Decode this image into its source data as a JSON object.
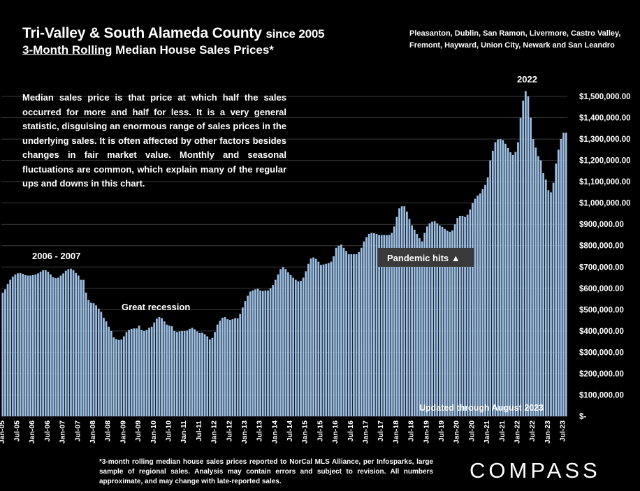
{
  "header": {
    "title_main": "Tri-Valley & South Alameda County",
    "title_suffix": "since 2005",
    "subtitle_underlined": "3-Month Rolling",
    "subtitle_rest": "Median House Sales Prices*",
    "region_line1": "Pleasanton, Dublin, San Ramon, Livermore, Castro Valley,",
    "region_line2": "Fremont, Hayward, Union City, Newark and San Leandro"
  },
  "description": "Median sales price is that price at which half the sales occurred for more and half for less. It is a very general statistic, disguising an enormous range of sales prices in the underlying sales. It is often affected by other factors besides changes in fair market value. Monthly and seasonal fluctuations are common, which explain many of the regular ups and downs in this chart.",
  "footnote": "*3-month rolling median house sales prices reported to NorCal MLS Alliance, per Infosparks, large sample of regional sales. Analysis may contain errors and subject to revision. All numbers approximate, and may change with late-reported sales.",
  "logo": "COMPASS",
  "colors": {
    "bar": "#9dbfe3",
    "grid": "#3a3a3a",
    "background": "#000000",
    "callout_bg": "#3a3a3a"
  },
  "chart_data": {
    "type": "bar",
    "y_axis_side": "right",
    "ylim": [
      0,
      1600000
    ],
    "yticks": [
      "$-",
      "$100,000.00",
      "$200,000.00",
      "$300,000.00",
      "$400,000.00",
      "$500,000.00",
      "$600,000.00",
      "$700,000.00",
      "$800,000.00",
      "$900,000.00",
      "$1,000,000.00",
      "$1,100,000.00",
      "$1,200,000.00",
      "$1,300,000.00",
      "$1,400,000.00",
      "$1,500,000.00"
    ],
    "xtick_labels": [
      "Jan-05",
      "Jul-05",
      "Jan-06",
      "Jul-06",
      "Jan-07",
      "Jul-07",
      "Jan-08",
      "Jul-08",
      "Jan-09",
      "Jul-09",
      "Jan-10",
      "Jul-10",
      "Jan-11",
      "Jul-11",
      "Jan-12",
      "Jul-12",
      "Jan-13",
      "Jul-13",
      "Jan-14",
      "Jul-14",
      "Jan-15",
      "Jul-15",
      "Jan-16",
      "Jul-16",
      "Jan-17",
      "Jul-17",
      "Jan-18",
      "Jul-18",
      "Jan-19",
      "Jul-19",
      "Jan-20",
      "Jul-20",
      "Jan-21",
      "Jul-21",
      "Jan-22",
      "Jul-22",
      "Jan-23",
      "Jul-23"
    ],
    "start_month": "Jan-05",
    "values": [
      580000,
      595000,
      620000,
      640000,
      655000,
      665000,
      670000,
      672000,
      668000,
      662000,
      660000,
      660000,
      662000,
      665000,
      670000,
      678000,
      685000,
      685000,
      678000,
      665000,
      652000,
      648000,
      650000,
      660000,
      670000,
      682000,
      690000,
      692000,
      685000,
      672000,
      660000,
      640000,
      640000,
      580000,
      545000,
      532000,
      530000,
      520000,
      505000,
      490000,
      462000,
      445000,
      420000,
      400000,
      370000,
      362000,
      358000,
      360000,
      375000,
      395000,
      405000,
      410000,
      412000,
      412000,
      425000,
      405000,
      400000,
      405000,
      415000,
      420000,
      440000,
      458000,
      465000,
      460000,
      445000,
      430000,
      425000,
      422000,
      400000,
      395000,
      398000,
      400000,
      400000,
      402000,
      410000,
      415000,
      408000,
      398000,
      390000,
      392000,
      385000,
      375000,
      360000,
      368000,
      395000,
      430000,
      448000,
      462000,
      465000,
      455000,
      452000,
      455000,
      460000,
      460000,
      480000,
      510000,
      540000,
      565000,
      585000,
      590000,
      595000,
      598000,
      590000,
      588000,
      590000,
      590000,
      600000,
      615000,
      640000,
      665000,
      690000,
      700000,
      690000,
      675000,
      662000,
      650000,
      640000,
      633000,
      635000,
      650000,
      680000,
      715000,
      740000,
      745000,
      738000,
      725000,
      710000,
      712000,
      715000,
      718000,
      725000,
      750000,
      790000,
      800000,
      805000,
      790000,
      775000,
      760000,
      760000,
      760000,
      760000,
      770000,
      790000,
      820000,
      840000,
      855000,
      860000,
      858000,
      855000,
      850000,
      850000,
      850000,
      850000,
      850000,
      860000,
      890000,
      935000,
      975000,
      985000,
      985000,
      960000,
      925000,
      895000,
      875000,
      855000,
      835000,
      820000,
      860000,
      890000,
      905000,
      912000,
      915000,
      905000,
      895000,
      888000,
      878000,
      870000,
      865000,
      872000,
      900000,
      930000,
      940000,
      940000,
      935000,
      945000,
      970000,
      1000000,
      1020000,
      1035000,
      1045000,
      1065000,
      1085000,
      1120000,
      1200000,
      1245000,
      1285000,
      1298000,
      1300000,
      1295000,
      1278000,
      1258000,
      1238000,
      1225000,
      1240000,
      1285000,
      1400000,
      1480000,
      1525000,
      1500000,
      1400000,
      1300000,
      1260000,
      1220000,
      1200000,
      1140000,
      1110000,
      1060000,
      1050000,
      1095000,
      1185000,
      1250000,
      1300000,
      1330000,
      1330000
    ]
  },
  "annotations": {
    "peak_2006": "2006 - 2007",
    "recession": "Great recession",
    "pandemic": "Pandemic hits ▲",
    "year_2022": "2022",
    "updated": "Updated through August 2023"
  }
}
